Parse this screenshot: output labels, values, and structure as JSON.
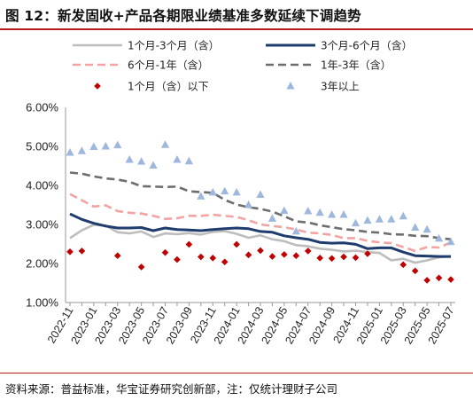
{
  "title": "图 12：新发固收+产品各期限业绩基准多数延续下调趋势",
  "source": "资料来源：普益标准，华宝证券研究创新部，注：仅统计理财子公司",
  "colors": {
    "s1": "#bdbdbd",
    "s2": "#1f3c6e",
    "s3": "#f2a3a3",
    "s4": "#6d6d6d",
    "s5": "#c00000",
    "s6": "#9eb7dc",
    "rule": "#b71c1c"
  },
  "chart_data": {
    "type": "line",
    "x": [
      "2022-11",
      "2022-12",
      "2023-01",
      "2023-02",
      "2023-03",
      "2023-04",
      "2023-05",
      "2023-06",
      "2023-07",
      "2023-08",
      "2023-09",
      "2023-10",
      "2023-11",
      "2023-12",
      "2024-01",
      "2024-02",
      "2024-03",
      "2024-04",
      "2024-05",
      "2024-06",
      "2024-07",
      "2024-08",
      "2024-09",
      "2024-10",
      "2024-11",
      "2024-12",
      "2025-01",
      "2025-02",
      "2025-03",
      "2025-04",
      "2025-05",
      "2025-06",
      "2025-07"
    ],
    "xtick_labels": [
      "2022-11",
      "2023-01",
      "2023-03",
      "2023-05",
      "2023-07",
      "2023-09",
      "2023-11",
      "2024-01",
      "2024-03",
      "2024-05",
      "2024-07",
      "2024-09",
      "2024-11",
      "2025-01",
      "2025-03",
      "2025-05",
      "2025-07"
    ],
    "ylim": [
      0.01,
      0.06
    ],
    "yticks": [
      "1.00%",
      "2.00%",
      "3.00%",
      "4.00%",
      "5.00%",
      "6.00%"
    ],
    "grid": false,
    "legend_position": "top",
    "series": [
      {
        "name": "1个月-3个月（含）",
        "style": "line",
        "color_key": "s1",
        "values": [
          0.0265,
          0.0285,
          0.0299,
          0.0297,
          0.028,
          0.0277,
          0.0282,
          0.0268,
          0.0277,
          0.0275,
          0.0278,
          0.0274,
          0.0281,
          0.0283,
          0.0276,
          0.0266,
          0.0272,
          0.0262,
          0.0257,
          0.0247,
          0.0244,
          0.0238,
          0.0235,
          0.0231,
          0.0233,
          0.0229,
          0.0227,
          0.0208,
          0.0212,
          0.0202,
          0.0208,
          0.0216,
          0.0218
        ]
      },
      {
        "name": "3个月-6个月（含）",
        "style": "line",
        "color_key": "s2",
        "values": [
          0.0327,
          0.0313,
          0.0303,
          0.0296,
          0.0291,
          0.0291,
          0.0292,
          0.0284,
          0.0291,
          0.0287,
          0.0286,
          0.0284,
          0.0287,
          0.0289,
          0.0291,
          0.0289,
          0.0282,
          0.028,
          0.0271,
          0.0266,
          0.0262,
          0.0254,
          0.0252,
          0.0253,
          0.0249,
          0.0238,
          0.024,
          0.024,
          0.0229,
          0.022,
          0.0219,
          0.0218,
          0.0218
        ]
      },
      {
        "name": "6个月-1年（含）",
        "style": "dashed",
        "color_key": "s3",
        "values": [
          0.0378,
          0.0362,
          0.0346,
          0.0349,
          0.0334,
          0.033,
          0.0328,
          0.0322,
          0.0314,
          0.0316,
          0.0322,
          0.0322,
          0.0325,
          0.0322,
          0.0319,
          0.0311,
          0.03,
          0.0296,
          0.0293,
          0.0287,
          0.0279,
          0.0277,
          0.0273,
          0.0265,
          0.0265,
          0.0258,
          0.0254,
          0.0252,
          0.0242,
          0.0232,
          0.0242,
          0.0241,
          0.0254
        ]
      },
      {
        "name": "1年-3年（含）",
        "style": "dashed",
        "color_key": "s4",
        "values": [
          0.0433,
          0.043,
          0.0423,
          0.0418,
          0.0415,
          0.0409,
          0.0398,
          0.0397,
          0.0396,
          0.0397,
          0.0385,
          0.0383,
          0.0381,
          0.0363,
          0.0351,
          0.0344,
          0.034,
          0.0333,
          0.0321,
          0.0308,
          0.0305,
          0.0298,
          0.0293,
          0.0288,
          0.0285,
          0.0281,
          0.0279,
          0.0275,
          0.0274,
          0.0271,
          0.027,
          0.0265,
          0.0262
        ]
      },
      {
        "name": "1个月（含）以下",
        "style": "diamond",
        "color_key": "s5",
        "values": [
          0.023,
          0.0232,
          null,
          null,
          0.022,
          null,
          0.0191,
          null,
          0.0228,
          0.021,
          0.0249,
          0.0217,
          0.0214,
          0.0204,
          0.0249,
          0.0222,
          0.0233,
          0.0218,
          0.0223,
          0.022,
          0.0232,
          0.0214,
          0.0213,
          0.0217,
          0.0215,
          0.0225,
          null,
          null,
          0.0197,
          0.0181,
          0.0157,
          0.0163,
          0.0159
        ]
      },
      {
        "name": "3年以上",
        "style": "triangle",
        "color_key": "s6",
        "values": [
          0.0484,
          0.0488,
          0.0499,
          0.05,
          0.0503,
          0.0466,
          0.0461,
          0.0451,
          0.0504,
          0.0466,
          0.0462,
          0.0372,
          0.0382,
          0.0385,
          0.0382,
          0.035,
          0.0376,
          0.0315,
          0.0335,
          0.0282,
          0.0334,
          0.033,
          0.0325,
          0.0325,
          0.0303,
          0.031,
          0.0313,
          0.0313,
          0.0321,
          0.0292,
          0.0287,
          0.0264,
          0.0255
        ]
      }
    ]
  }
}
